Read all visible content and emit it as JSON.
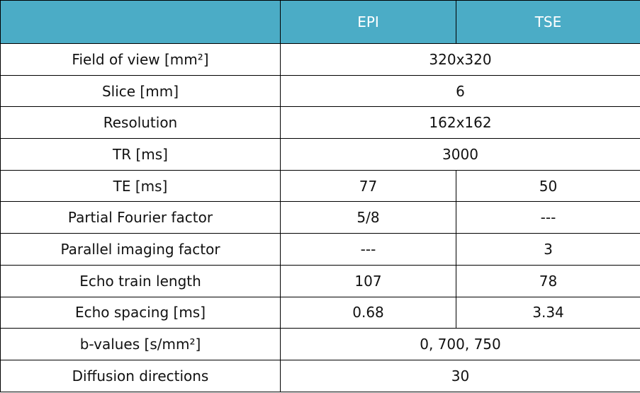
{
  "table": {
    "columns": [
      "EPI",
      "TSE"
    ],
    "rows": [
      [
        "Field of view [mm²]",
        "320x320"
      ],
      [
        "Slice [mm]",
        "6"
      ],
      [
        "Resolution",
        "162x162"
      ],
      [
        "TR [ms]",
        "3000"
      ],
      [
        "TE [ms]",
        "77",
        "50"
      ],
      [
        "Partial Fourier factor",
        "5/8",
        "---"
      ],
      [
        "Parallel imaging factor",
        "---",
        "3"
      ],
      [
        "Echo train length",
        "107",
        "78"
      ],
      [
        "Echo spacing [ms]",
        "0.68",
        "3.34"
      ],
      [
        "b-values [s/mm²]",
        "0, 700, 750"
      ],
      [
        "Diffusion directions",
        "30"
      ]
    ]
  }
}
